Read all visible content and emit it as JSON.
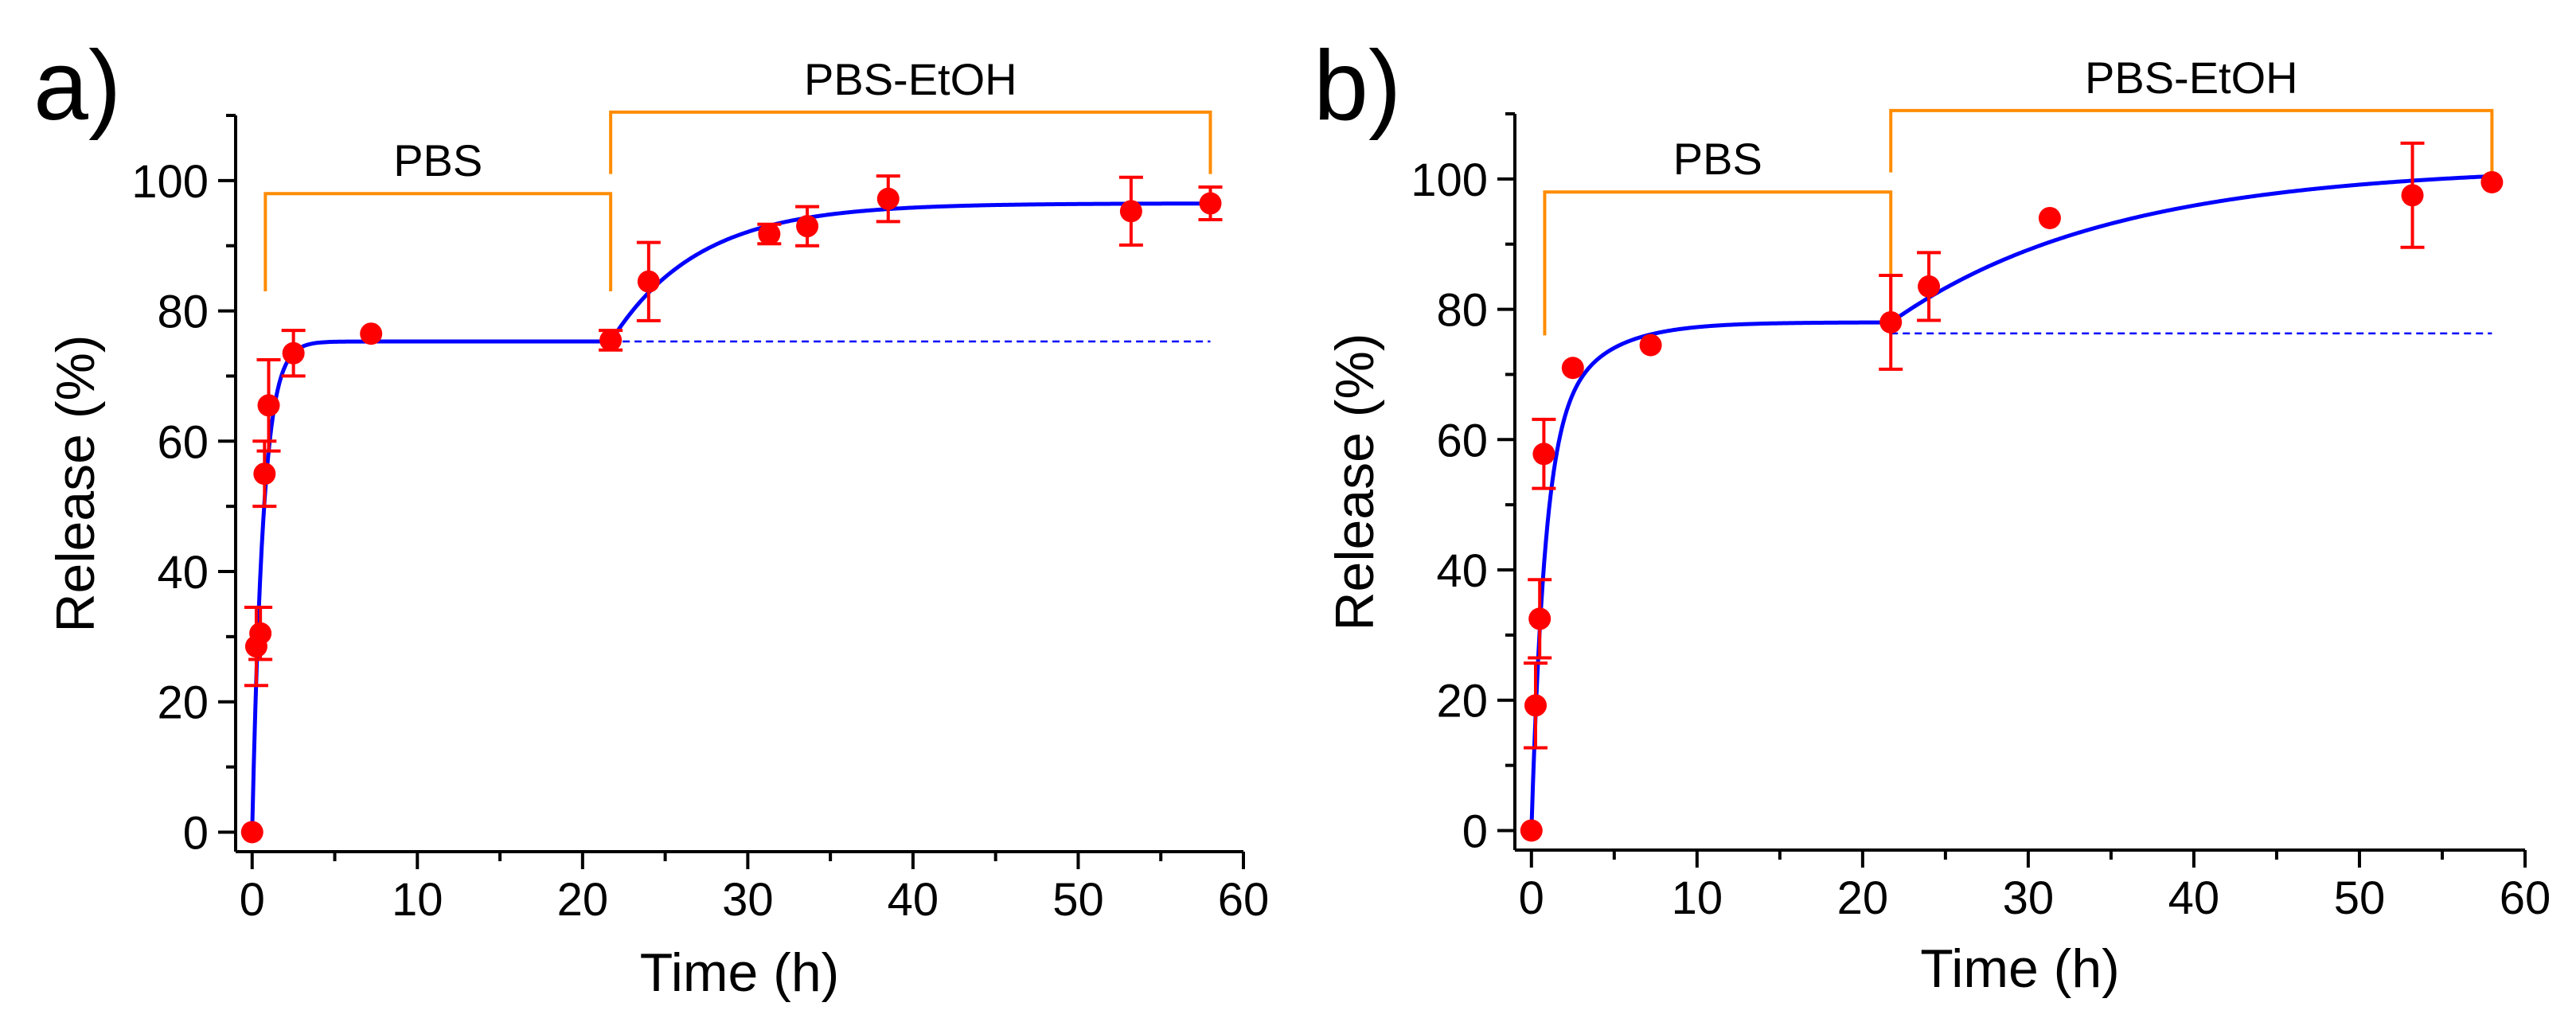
{
  "chart_data": [
    {
      "type": "scatter",
      "panel_label": "a)",
      "xlabel": "Time (h)",
      "ylabel": "Release (%)",
      "xlim": [
        -1,
        60
      ],
      "ylim": [
        -3,
        110
      ],
      "xticks": [
        0,
        10,
        20,
        30,
        40,
        50,
        60
      ],
      "yticks": [
        0,
        20,
        40,
        60,
        80,
        100
      ],
      "tick_labels_x": [
        "0",
        "10",
        "20",
        "30",
        "40",
        "50",
        "60"
      ],
      "tick_labels_y": [
        "0",
        "20",
        "40",
        "60",
        "80",
        "100"
      ],
      "series": [
        {
          "name": "Release data",
          "color": "#ff0000",
          "points": [
            {
              "x": 0,
              "y": 0,
              "err": 0
            },
            {
              "x": 0.25,
              "y": 28.5,
              "err": 6
            },
            {
              "x": 0.5,
              "y": 30.5,
              "err": 4
            },
            {
              "x": 0.75,
              "y": 55,
              "err": 5
            },
            {
              "x": 1.0,
              "y": 65.5,
              "err": 7
            },
            {
              "x": 2.5,
              "y": 73.5,
              "err": 3.5
            },
            {
              "x": 7.2,
              "y": 76.5,
              "err": 0
            },
            {
              "x": 21.7,
              "y": 75.5,
              "err": 1.5
            },
            {
              "x": 24,
              "y": 84.5,
              "err": 6
            },
            {
              "x": 31.3,
              "y": 91.8,
              "err": 1.5
            },
            {
              "x": 33.6,
              "y": 93,
              "err": 3
            },
            {
              "x": 38.5,
              "y": 97.2,
              "err": 3.5
            },
            {
              "x": 53.2,
              "y": 95.3,
              "err": 5.2
            },
            {
              "x": 58,
              "y": 96.5,
              "err": 2.5
            }
          ]
        },
        {
          "name": "Fit",
          "color": "#0000ff",
          "model": {
            "plateau1": 75.3,
            "rate1": 1.5,
            "switch": 21.7,
            "rise": 21.2,
            "rate2": 0.19
          }
        }
      ],
      "reference_line": {
        "y": 75.3,
        "x_from": 21.7,
        "x_to": 58,
        "color": "#0000ff"
      },
      "brackets": [
        {
          "label": "PBS",
          "x_from": 0.8,
          "x_to": 21.7,
          "y_top": 98,
          "y_end": 83,
          "color": "#ff8c00"
        },
        {
          "label": "PBS-EtOH",
          "x_from": 21.7,
          "x_to": 58,
          "y_top": 110.5,
          "y_end": 101,
          "color": "#ff8c00"
        }
      ]
    },
    {
      "type": "scatter",
      "panel_label": "b)",
      "xlabel": "Time (h)",
      "ylabel": "Release (%)",
      "xlim": [
        -1,
        60
      ],
      "ylim": [
        -3,
        110
      ],
      "xticks": [
        0,
        10,
        20,
        30,
        40,
        50,
        60
      ],
      "yticks": [
        0,
        20,
        40,
        60,
        80,
        100
      ],
      "tick_labels_x": [
        "0",
        "10",
        "20",
        "30",
        "40",
        "50",
        "60"
      ],
      "tick_labels_y": [
        "0",
        "20",
        "40",
        "60",
        "80",
        "100"
      ],
      "series": [
        {
          "name": "Release data",
          "color": "#ff0000",
          "points": [
            {
              "x": 0,
              "y": 0,
              "err": 0
            },
            {
              "x": 0.25,
              "y": 19.2,
              "err": 6.5
            },
            {
              "x": 0.5,
              "y": 32.5,
              "err": 6
            },
            {
              "x": 0.75,
              "y": 57.8,
              "err": 5.3
            },
            {
              "x": 2.5,
              "y": 71,
              "err": 0
            },
            {
              "x": 7.2,
              "y": 74.5,
              "err": 0
            },
            {
              "x": 21.7,
              "y": 78,
              "err": 7.2
            },
            {
              "x": 24,
              "y": 83.5,
              "err": 5.2
            },
            {
              "x": 31.3,
              "y": 94,
              "err": 0
            },
            {
              "x": 53.2,
              "y": 97.5,
              "err": 8
            },
            {
              "x": 58,
              "y": 99.5,
              "err": 0
            }
          ]
        },
        {
          "name": "Fit",
          "color": "#0000ff",
          "model": {
            "a1": 58,
            "k1": 1.3,
            "a2": 20,
            "k2": 0.33,
            "switch": 21.7,
            "rise": 24,
            "rate2": 0.075
          }
        }
      ],
      "reference_line": {
        "y": 76.3,
        "x_from": 21.7,
        "x_to": 58,
        "color": "#0000ff"
      },
      "brackets": [
        {
          "label": "PBS",
          "x_from": 0.8,
          "x_to": 21.7,
          "y_top": 98,
          "y_end": 76,
          "color": "#ff8c00"
        },
        {
          "label": "PBS-EtOH",
          "x_from": 21.7,
          "x_to": 58,
          "y_top": 110.5,
          "y_end": 101,
          "color": "#ff8c00"
        }
      ]
    }
  ]
}
